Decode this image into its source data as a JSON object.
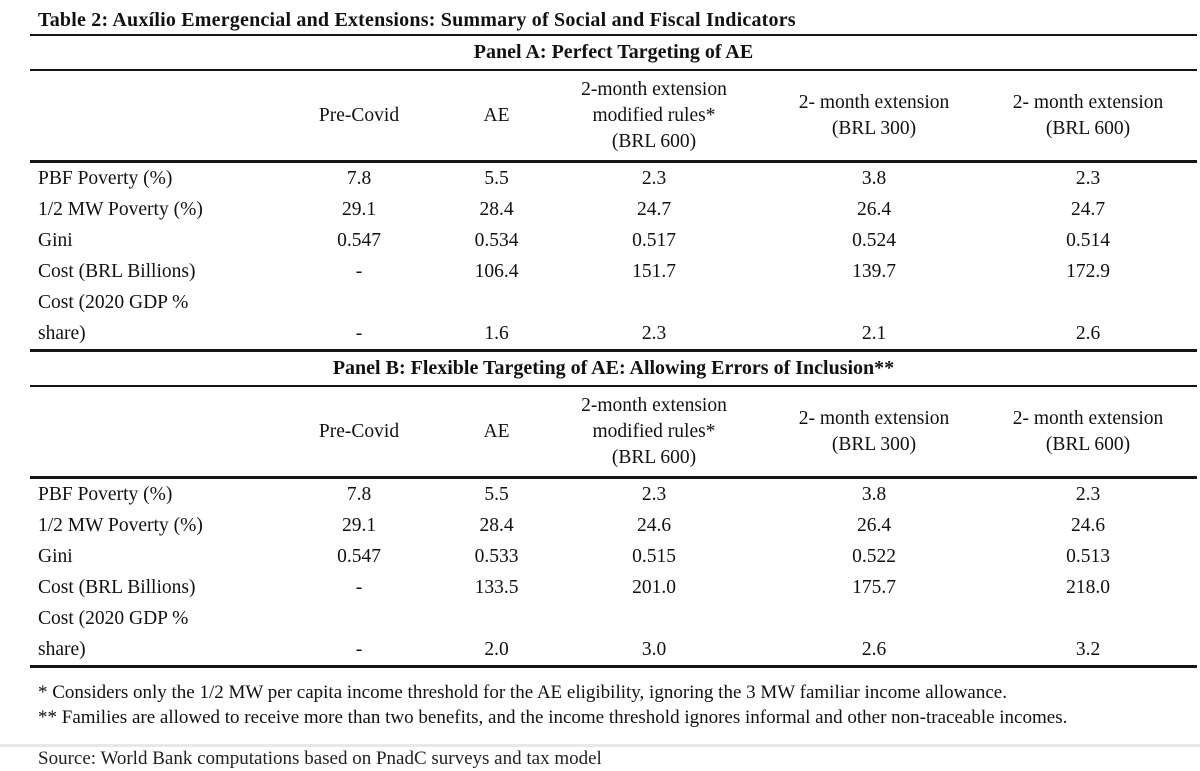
{
  "title": "Table 2: Auxílio Emergencial and Extensions: Summary of Social and Fiscal Indicators",
  "columns": {
    "c1": "Pre-Covid",
    "c2": "AE",
    "c3": "2-month extension\nmodified rules*\n(BRL 600)",
    "c4": "2- month extension\n(BRL 300)",
    "c5": "2- month extension\n(BRL 600)"
  },
  "panels": [
    {
      "heading": "Panel A: Perfect Targeting of AE",
      "rows": [
        {
          "label": "PBF Poverty (%)",
          "values": [
            "7.8",
            "5.5",
            "2.3",
            "3.8",
            "2.3"
          ]
        },
        {
          "label": "1/2 MW Poverty (%)",
          "values": [
            "29.1",
            "28.4",
            "24.7",
            "26.4",
            "24.7"
          ]
        },
        {
          "label": "Gini",
          "values": [
            "0.547",
            "0.534",
            "0.517",
            "0.524",
            "0.514"
          ]
        },
        {
          "label": "Cost (BRL Billions)",
          "values": [
            "-",
            "106.4",
            "151.7",
            "139.7",
            "172.9"
          ]
        },
        {
          "label": "Cost (2020 GDP %\nshare)",
          "values": [
            "-",
            "1.6",
            "2.3",
            "2.1",
            "2.6"
          ]
        }
      ]
    },
    {
      "heading": "Panel B: Flexible Targeting of AE: Allowing Errors of Inclusion**",
      "rows": [
        {
          "label": "PBF Poverty (%)",
          "values": [
            "7.8",
            "5.5",
            "2.3",
            "3.8",
            "2.3"
          ]
        },
        {
          "label": "1/2 MW Poverty (%)",
          "values": [
            "29.1",
            "28.4",
            "24.6",
            "26.4",
            "24.6"
          ]
        },
        {
          "label": "Gini",
          "values": [
            "0.547",
            "0.533",
            "0.515",
            "0.522",
            "0.513"
          ]
        },
        {
          "label": "Cost (BRL Billions)",
          "values": [
            "-",
            "133.5",
            "201.0",
            "175.7",
            "218.0"
          ]
        },
        {
          "label": "Cost (2020 GDP %\nshare)",
          "values": [
            "-",
            "2.0",
            "3.0",
            "2.6",
            "3.2"
          ]
        }
      ]
    }
  ],
  "footnotes": [
    "* Considers only the 1/2 MW per capita income threshold for the AE eligibility, ignoring the 3 MW familiar income allowance.",
    "** Families are allowed to receive more than two benefits, and the income threshold ignores informal and other non-traceable incomes."
  ],
  "source_line": "Source: World Bank computations based on PnadC surveys and tax model"
}
